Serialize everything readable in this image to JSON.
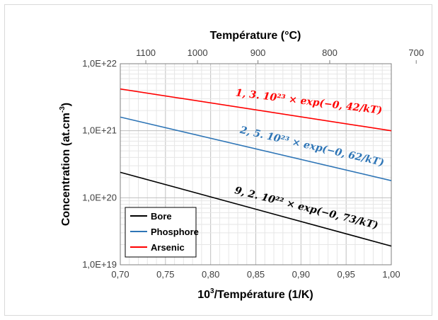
{
  "chart_data": {
    "type": "line",
    "x_label_main": "10",
    "x_label_sup": "3",
    "x_label_rest": "/Température (1/K)",
    "y_label_main": "Concentration (at.cm",
    "y_label_sup": "-3",
    "y_label_rest": ")",
    "top_axis_title": "Température (°C)",
    "xlim": [
      0.7,
      1.0
    ],
    "ylim": [
      1e+19,
      1e+22
    ],
    "y_scale": "log",
    "x_ticks": [
      0.7,
      0.75,
      0.8,
      0.85,
      0.9,
      0.95,
      1.0
    ],
    "x_tick_labels": [
      "0,70",
      "0,75",
      "0,80",
      "0,85",
      "0,90",
      "0,95",
      "1,00"
    ],
    "y_ticks": [
      1e+19,
      1e+20,
      1e+21,
      1e+22
    ],
    "y_tick_labels": [
      "1,0E+19",
      "1,0E+20",
      "1,0E+21",
      "1,0E+22"
    ],
    "top_ticks_celsius": [
      1100,
      1000,
      900,
      800,
      700
    ],
    "top_tick_labels": [
      "1100",
      "1000",
      "900",
      "800",
      "700"
    ],
    "grid": true,
    "legend_position": "bottom-left",
    "series": [
      {
        "name": "Bore",
        "color": "#000000",
        "x": [
          0.7,
          1.0
        ],
        "y": [
          2.4e+20,
          1.9e+19
        ],
        "annotation": "9, 2. 10²² × exp(−0, 73/kT)"
      },
      {
        "name": "Phosphore",
        "color": "#2e75b6",
        "x": [
          0.7,
          1.0
        ],
        "y": [
          1.6e+21,
          1.8e+20
        ],
        "annotation": "2, 5. 10²³ × exp(−0, 62/kT)"
      },
      {
        "name": "Arsenic",
        "color": "#ff0000",
        "x": [
          0.7,
          1.0
        ],
        "y": [
          4.2e+21,
          1e+21
        ],
        "annotation": "1, 3. 10²³ × exp(−0, 42/kT)"
      }
    ]
  }
}
